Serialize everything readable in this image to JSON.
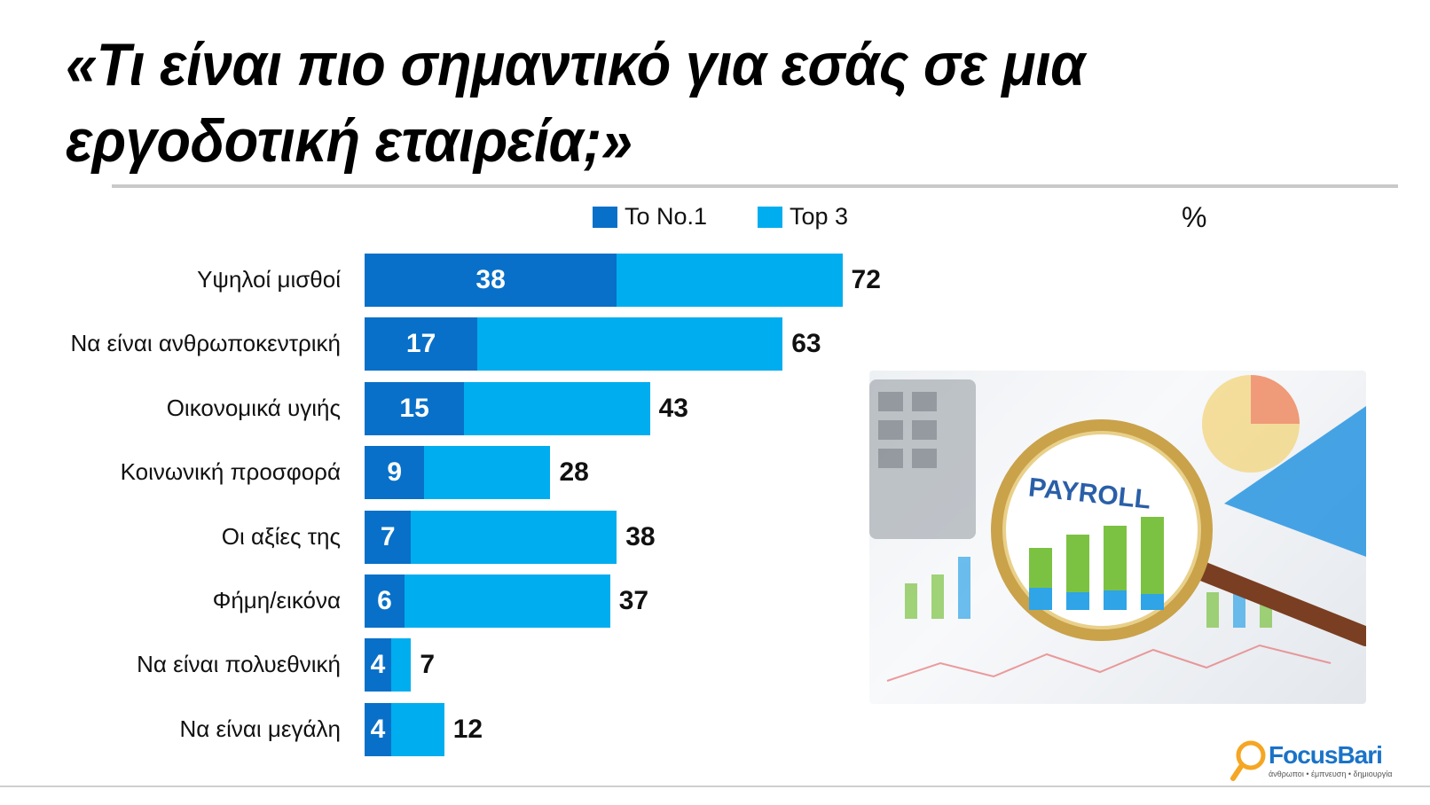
{
  "title_line1": "«Τι είναι πιο σημαντικό για εσάς σε μια",
  "title_line2": "εργοδοτική εταιρεία;»",
  "unit_label": "%",
  "chart_data": {
    "type": "bar",
    "orientation": "horizontal",
    "categories": [
      "Υψηλοί μισθοί",
      "Να είναι ανθρωποκεντρική",
      "Οικονομικά υγιής",
      "Κοινωνική προσφορά",
      "Οι αξίες της",
      "Φήμη/εικόνα",
      "Να είναι πολυεθνική",
      "Να είναι μεγάλη"
    ],
    "series": [
      {
        "name": "Το No.1",
        "values": [
          38,
          17,
          15,
          9,
          7,
          6,
          4,
          4
        ],
        "color": "#0870c8"
      },
      {
        "name": "Top 3",
        "values": [
          72,
          63,
          43,
          28,
          38,
          37,
          7,
          12
        ],
        "color": "#00adef"
      }
    ],
    "legend_position": "top",
    "grid": false,
    "xlim": [
      0,
      100
    ]
  },
  "photo": {
    "label": "PAYROLL",
    "icon": "magnifying-glass-icon"
  },
  "logo": {
    "name": "FocusBari",
    "tagline": "άνθρωποι • έμπνευση • δημιουργία",
    "icon": "magnifier-logo-icon"
  }
}
